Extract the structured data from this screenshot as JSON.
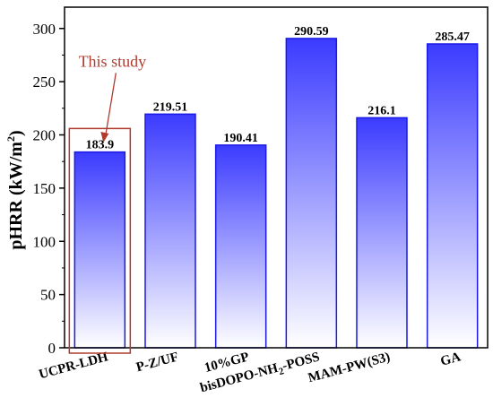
{
  "chart_data": {
    "type": "bar",
    "categories": [
      "UCPR-LDH",
      "P-Z/UF",
      "10%GP",
      "bisDOPO-NH2-POSS",
      "MAM-PW(S3)",
      "GA"
    ],
    "category_labels": [
      {
        "text": "UCPR-LDH"
      },
      {
        "text": "P-Z/UF"
      },
      {
        "text": "10%GP"
      },
      {
        "text": "bisDOPO-NH",
        "sub": "2",
        "rest": "-POSS"
      },
      {
        "text": "MAM-PW(S3)"
      },
      {
        "text": "GA"
      }
    ],
    "values": [
      183.9,
      219.51,
      190.41,
      290.59,
      216.1,
      285.47
    ],
    "value_labels": [
      "183.9",
      "219.51",
      "190.41",
      "290.59",
      "216.1",
      "285.47"
    ],
    "ylabel": {
      "main": "pHRR (kW/m",
      "sup": "2",
      "close": ")"
    },
    "ylim": [
      0,
      320
    ],
    "yticks": [
      0,
      50,
      100,
      150,
      200,
      250,
      300
    ],
    "grid": false,
    "bar_color_top": "#3b3bff",
    "bar_color_bottom": "#ffffff",
    "bar_edge_color": "#1a1ae6",
    "annotation": {
      "text": "This study",
      "color": "#b03a2e",
      "target_index": 0
    }
  }
}
